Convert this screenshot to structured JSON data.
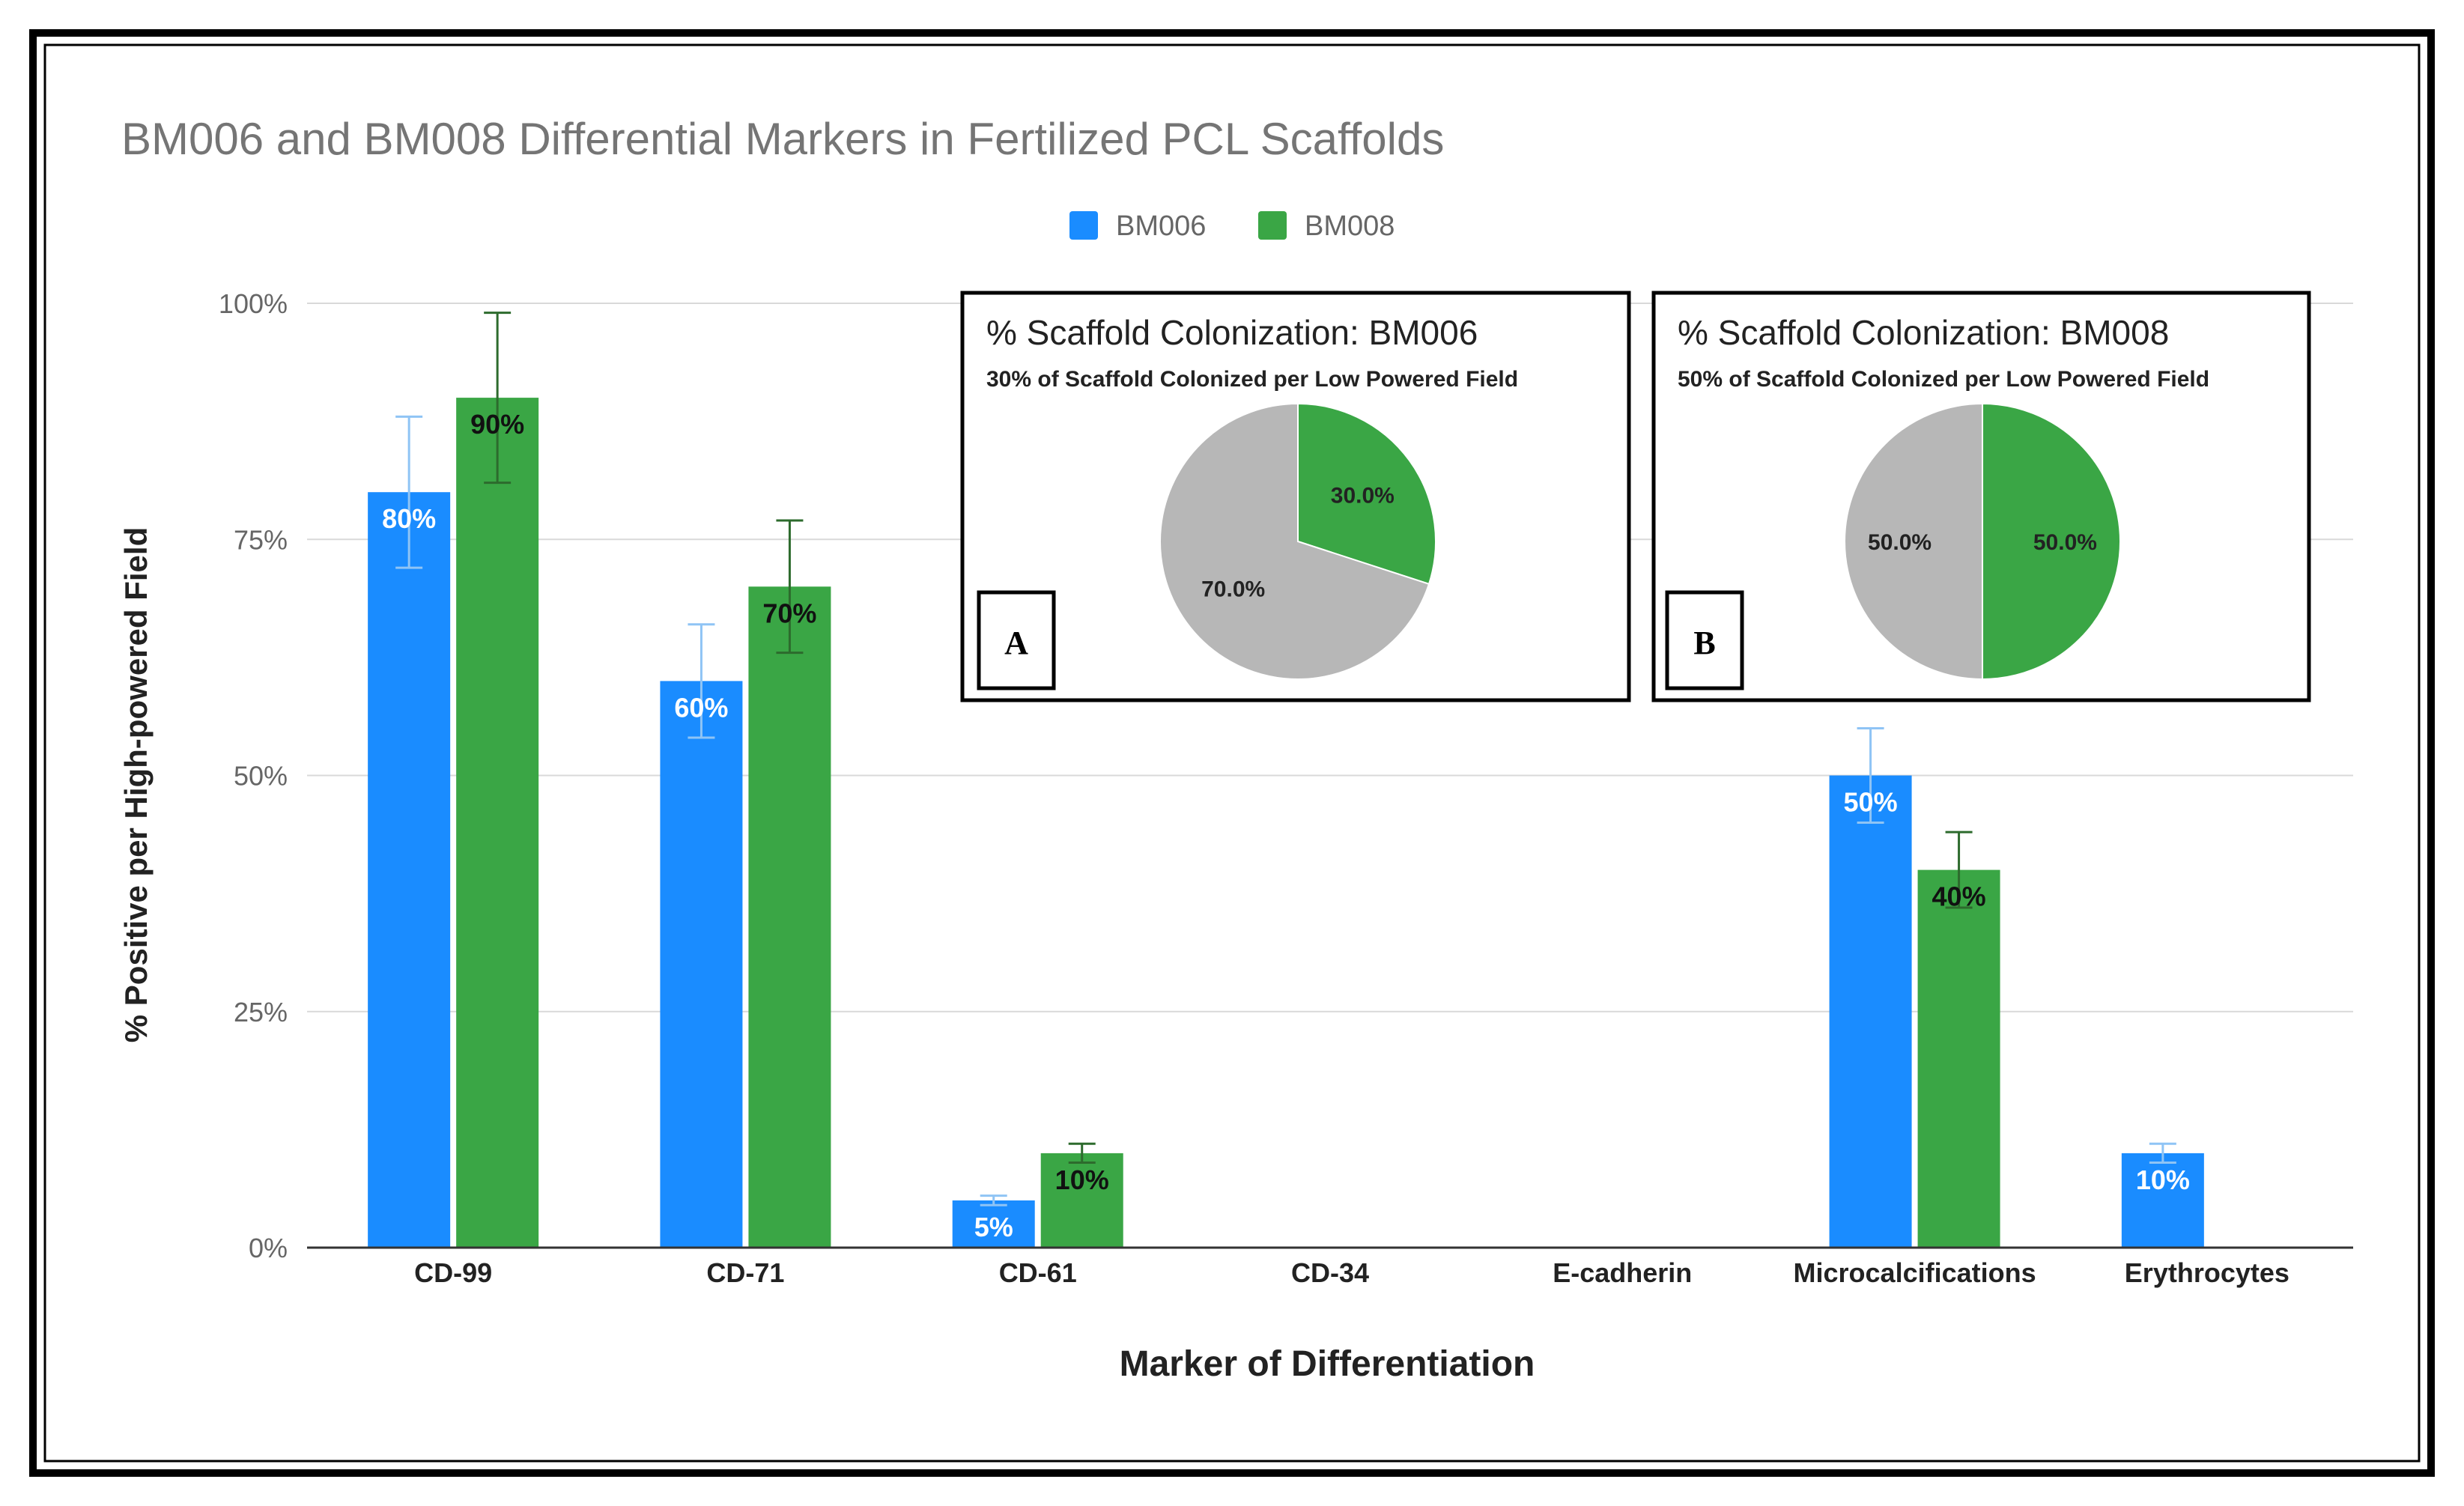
{
  "chart_data": [
    {
      "type": "bar",
      "title": "BM006 and BM008 Differential Markers in Fertilized PCL Scaffolds",
      "xlabel": "Marker of Differentiation",
      "ylabel": "% Positive per High-powered Field",
      "ylim": [
        0,
        100
      ],
      "yticks": [
        0,
        25,
        50,
        75,
        100
      ],
      "ytick_labels": [
        "0%",
        "25%",
        "50%",
        "75%",
        "100%"
      ],
      "grid": true,
      "legend_position": "top-center",
      "categories": [
        "CD-99",
        "CD-71",
        "CD-61",
        "CD-34",
        "E-cadherin",
        "Microcalcifications",
        "Erythrocytes"
      ],
      "series": [
        {
          "name": "BM006",
          "color": "#1a8cff",
          "values": [
            80,
            60,
            5,
            null,
            null,
            50,
            10
          ],
          "data_labels": [
            "80%",
            "60%",
            "5%",
            null,
            null,
            "50%",
            "10%"
          ],
          "errors": [
            8,
            6,
            0.5,
            null,
            null,
            5,
            1
          ]
        },
        {
          "name": "BM008",
          "color": "#3aa645",
          "values": [
            90,
            70,
            10,
            null,
            null,
            40,
            null
          ],
          "data_labels": [
            "90%",
            "70%",
            "10%",
            null,
            null,
            "40%",
            null
          ],
          "errors": [
            9,
            7,
            1,
            null,
            null,
            4,
            null
          ]
        }
      ]
    },
    {
      "type": "pie",
      "panel_label": "A",
      "title": "% Scaffold Colonization: BM006",
      "subtitle": "30% of Scaffold Colonized per Low Powered Field",
      "slices": [
        {
          "label": "30.0%",
          "value": 30,
          "color": "#3aa645"
        },
        {
          "label": "70.0%",
          "value": 70,
          "color": "#b7b7b7"
        }
      ]
    },
    {
      "type": "pie",
      "panel_label": "B",
      "title": "% Scaffold Colonization: BM008",
      "subtitle": "50% of Scaffold Colonized per Low Powered Field",
      "slices": [
        {
          "label": "50.0%",
          "value": 50,
          "color": "#3aa645"
        },
        {
          "label": "50.0%",
          "value": 50,
          "color": "#b7b7b7"
        }
      ]
    }
  ]
}
